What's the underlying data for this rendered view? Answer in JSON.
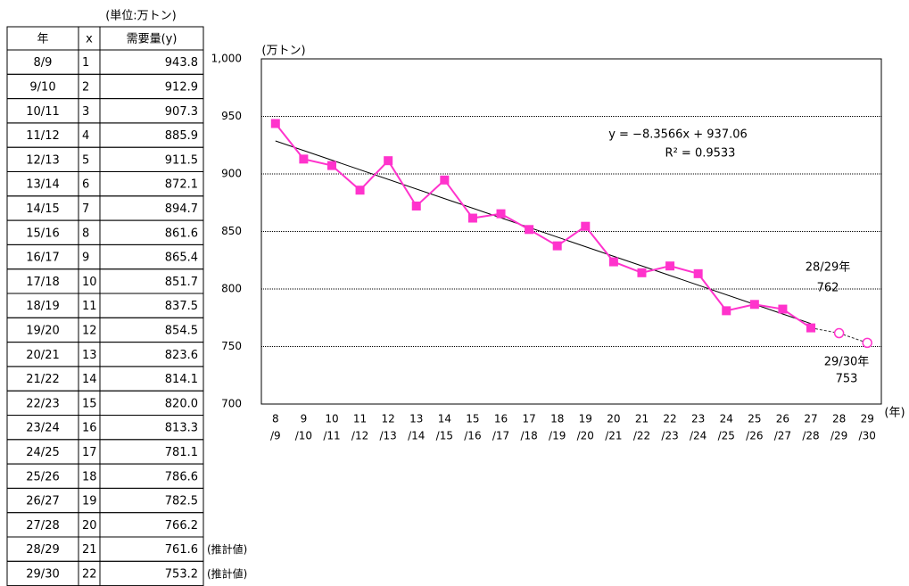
{
  "table": {
    "unit": "(単位:万トン)",
    "header": [
      "年",
      "x",
      "需要量(y)"
    ],
    "rows": [
      [
        "8/9",
        1,
        "943.8"
      ],
      [
        "9/10",
        2,
        "912.9"
      ],
      [
        "10/11",
        3,
        "907.3"
      ],
      [
        "11/12",
        4,
        "885.9"
      ],
      [
        "12/13",
        5,
        "911.5"
      ],
      [
        "13/14",
        6,
        "872.1"
      ],
      [
        "14/15",
        7,
        "894.7"
      ],
      [
        "15/16",
        8,
        "861.6"
      ],
      [
        "16/17",
        9,
        "865.4"
      ],
      [
        "17/18",
        10,
        "851.7"
      ],
      [
        "18/19",
        11,
        "837.5"
      ],
      [
        "19/20",
        12,
        "854.5"
      ],
      [
        "20/21",
        13,
        "823.6"
      ],
      [
        "21/22",
        14,
        "814.1"
      ],
      [
        "22/23",
        15,
        "820.0"
      ],
      [
        "23/24",
        16,
        "813.3"
      ],
      [
        "24/25",
        17,
        "781.1"
      ],
      [
        "25/26",
        18,
        "786.6"
      ],
      [
        "26/27",
        19,
        "782.5"
      ],
      [
        "27/28",
        20,
        "766.2"
      ],
      [
        "28/29",
        21,
        "761.6"
      ],
      [
        "29/30",
        22,
        "753.2"
      ]
    ],
    "notes": {
      "20": "(推計値)",
      "21": "(推計値)"
    }
  },
  "chart_data": {
    "type": "line",
    "y_label": "(万トン)",
    "x_label": "(年)",
    "categories": [
      [
        "8",
        "/9"
      ],
      [
        "9",
        "/10"
      ],
      [
        "10",
        "/11"
      ],
      [
        "11",
        "/12"
      ],
      [
        "12",
        "/13"
      ],
      [
        "13",
        "/14"
      ],
      [
        "14",
        "/15"
      ],
      [
        "15",
        "/16"
      ],
      [
        "16",
        "/17"
      ],
      [
        "17",
        "/18"
      ],
      [
        "18",
        "/19"
      ],
      [
        "19",
        "/20"
      ],
      [
        "20",
        "/21"
      ],
      [
        "21",
        "/22"
      ],
      [
        "22",
        "/23"
      ],
      [
        "23",
        "/24"
      ],
      [
        "24",
        "/25"
      ],
      [
        "25",
        "/26"
      ],
      [
        "26",
        "/27"
      ],
      [
        "27",
        "/28"
      ],
      [
        "28",
        "/29"
      ],
      [
        "29",
        "/30"
      ]
    ],
    "series": [
      {
        "color": "#ff33cc",
        "marker": "square",
        "values": [
          943.8,
          912.9,
          907.3,
          885.9,
          911.5,
          872.1,
          894.7,
          861.6,
          865.4,
          851.7,
          837.5,
          854.5,
          823.6,
          814.1,
          820.0,
          813.3,
          781.1,
          786.6,
          782.5,
          766.2,
          null,
          null
        ]
      },
      {
        "color": "#ff33cc",
        "marker": "circle",
        "dashed": true,
        "values": [
          null,
          null,
          null,
          null,
          null,
          null,
          null,
          null,
          null,
          null,
          null,
          null,
          null,
          null,
          null,
          null,
          null,
          null,
          null,
          null,
          761.6,
          753.2
        ]
      }
    ],
    "trendline": {
      "slope": -8.3566,
      "intercept": 937.06,
      "x": [
        1,
        20
      ],
      "equation": "y = −8.3566x + 937.06",
      "r2": "R² = 0.9533"
    },
    "annotations": [
      "28/29年",
      "762",
      "29/30年",
      "753"
    ],
    "ylim": [
      700,
      1000
    ],
    "yticks": [
      700,
      750,
      800,
      850,
      900,
      950,
      {
        "value": 1000,
        "label": "1,000"
      }
    ],
    "grid": true
  }
}
